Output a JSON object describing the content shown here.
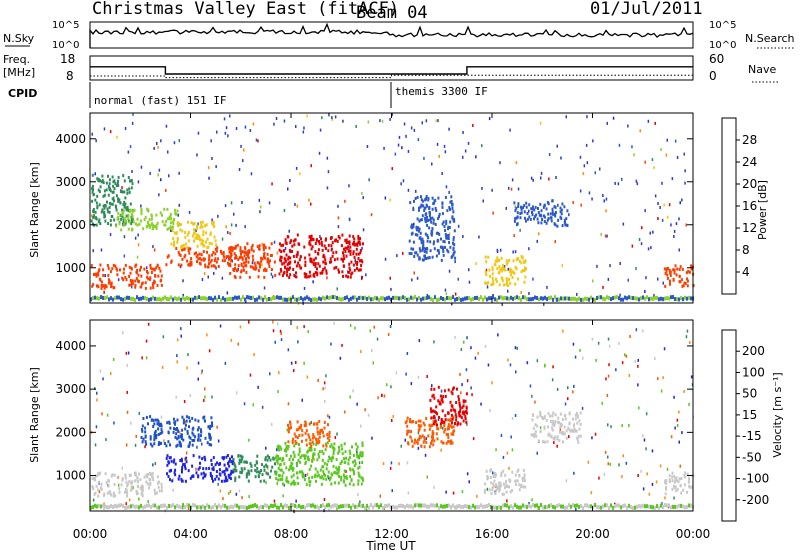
{
  "header": {
    "title": "Christmas Valley East (fitACF)",
    "beam": "Beam 04",
    "date": "01/Jul/2011"
  },
  "nsky": {
    "label": "N.Sky",
    "ticks": [
      "10^5",
      "10^0"
    ],
    "right_label": "N.Search",
    "right_ticks": [
      "10^5",
      "10^0"
    ]
  },
  "freq": {
    "label": "Freq.",
    "unit": "[MHz]",
    "ticks": [
      "18",
      "8"
    ],
    "right_label": "Nave",
    "right_ticks": [
      "60",
      "0"
    ],
    "series": [
      {
        "x": [
          "00:00",
          "03:00",
          "03:00",
          "15:00",
          "15:00",
          "24:00"
        ],
        "y": [
          13.5,
          13.5,
          10.5,
          10.5,
          13.5,
          13.5
        ]
      }
    ],
    "nave": [
      {
        "x": [
          "00:00",
          "03:00",
          "03:00",
          "12:00",
          "12:00",
          "24:00"
        ],
        "y": [
          10,
          10,
          6,
          6,
          12,
          12
        ]
      }
    ]
  },
  "cpid": {
    "label": "CPID",
    "segments": [
      {
        "start": "00:00",
        "label": "normal (fast) 151 IF"
      },
      {
        "start": "12:00",
        "label": "themis 3300 IF"
      }
    ]
  },
  "chart_data": [
    {
      "type": "heatmap",
      "name": "power",
      "xlabel": "",
      "ylabel": "Slant Range [km]",
      "xlim": [
        "00:00",
        "24:00"
      ],
      "ylim": [
        180,
        4600
      ],
      "yticks": [
        "1000",
        "2000",
        "3000",
        "4000"
      ],
      "colorbar": {
        "label": "Power [dB]",
        "ticks": [
          "4",
          "8",
          "12",
          "16",
          "20",
          "24",
          "28"
        ],
        "colors": [
          "#1e23e6",
          "#2d5ac8",
          "#2e8b57",
          "#8cd22d",
          "#f0c814",
          "#ff8c00",
          "#ff3c00",
          "#e60000"
        ]
      },
      "echo_regions": [
        {
          "t0": "00:00",
          "t1": "02:50",
          "r0": 550,
          "r1": 1100,
          "power": 24
        },
        {
          "t0": "00:00",
          "t1": "01:40",
          "r0": 2000,
          "r1": 3200,
          "power": 8
        },
        {
          "t0": "01:00",
          "t1": "03:30",
          "r0": 1900,
          "r1": 2400,
          "power": 12
        },
        {
          "t0": "03:00",
          "t1": "06:10",
          "r0": 1050,
          "r1": 1500,
          "power": 26
        },
        {
          "t0": "03:10",
          "t1": "05:00",
          "r0": 1500,
          "r1": 2100,
          "power": 16
        },
        {
          "t0": "05:30",
          "t1": "07:20",
          "r0": 800,
          "r1": 1600,
          "power": 24
        },
        {
          "t0": "07:30",
          "t1": "10:50",
          "r0": 800,
          "r1": 1800,
          "power": 28
        },
        {
          "t0": "12:40",
          "t1": "14:30",
          "r0": 1200,
          "r1": 2700,
          "power": 6
        },
        {
          "t0": "15:40",
          "t1": "17:20",
          "r0": 600,
          "r1": 1300,
          "power": 18
        },
        {
          "t0": "16:50",
          "t1": "19:00",
          "r0": 2000,
          "r1": 2600,
          "power": 6
        },
        {
          "t0": "22:50",
          "t1": "24:00",
          "r0": 600,
          "r1": 1100,
          "power": 24
        }
      ]
    },
    {
      "type": "heatmap",
      "name": "velocity",
      "xlabel": "Time UT",
      "ylabel": "Slant Range [km]",
      "xlim": [
        "00:00",
        "24:00"
      ],
      "ylim": [
        180,
        4600
      ],
      "xticks": [
        "00:00",
        "04:00",
        "08:00",
        "12:00",
        "16:00",
        "20:00",
        "00:00"
      ],
      "yticks": [
        "1000",
        "2000",
        "3000",
        "4000"
      ],
      "colorbar": {
        "label": "Velocity [m s⁻¹]",
        "ticks": [
          "200",
          "100",
          "50",
          "15",
          "-15",
          "-50",
          "-100",
          "-200"
        ],
        "colors": [
          "#1e23e6",
          "#1e50c8",
          "#2e8b57",
          "#5ac81e",
          "#c8c8c8",
          "#ff8c14",
          "#ff5a00",
          "#e60000"
        ]
      },
      "echo_regions": [
        {
          "t0": "00:00",
          "t1": "02:50",
          "r0": 550,
          "r1": 1100,
          "velocity": 0
        },
        {
          "t0": "03:00",
          "t1": "05:40",
          "r0": 900,
          "r1": 1500,
          "velocity": 200
        },
        {
          "t0": "02:00",
          "t1": "04:50",
          "r0": 1700,
          "r1": 2400,
          "velocity": 120
        },
        {
          "t0": "05:40",
          "t1": "07:20",
          "r0": 900,
          "r1": 1500,
          "velocity": 80
        },
        {
          "t0": "07:20",
          "t1": "10:50",
          "r0": 800,
          "r1": 1800,
          "velocity": 40
        },
        {
          "t0": "07:50",
          "t1": "09:30",
          "r0": 1700,
          "r1": 2300,
          "velocity": -60
        },
        {
          "t0": "12:30",
          "t1": "14:30",
          "r0": 1700,
          "r1": 2400,
          "velocity": -80
        },
        {
          "t0": "13:30",
          "t1": "15:00",
          "r0": 2200,
          "r1": 3100,
          "velocity": -180
        },
        {
          "t0": "15:40",
          "t1": "17:20",
          "r0": 600,
          "r1": 1200,
          "velocity": 0
        },
        {
          "t0": "17:30",
          "t1": "19:30",
          "r0": 1800,
          "r1": 2500,
          "velocity": 0
        },
        {
          "t0": "22:50",
          "t1": "24:00",
          "r0": 600,
          "r1": 1100,
          "velocity": 0
        }
      ]
    }
  ]
}
